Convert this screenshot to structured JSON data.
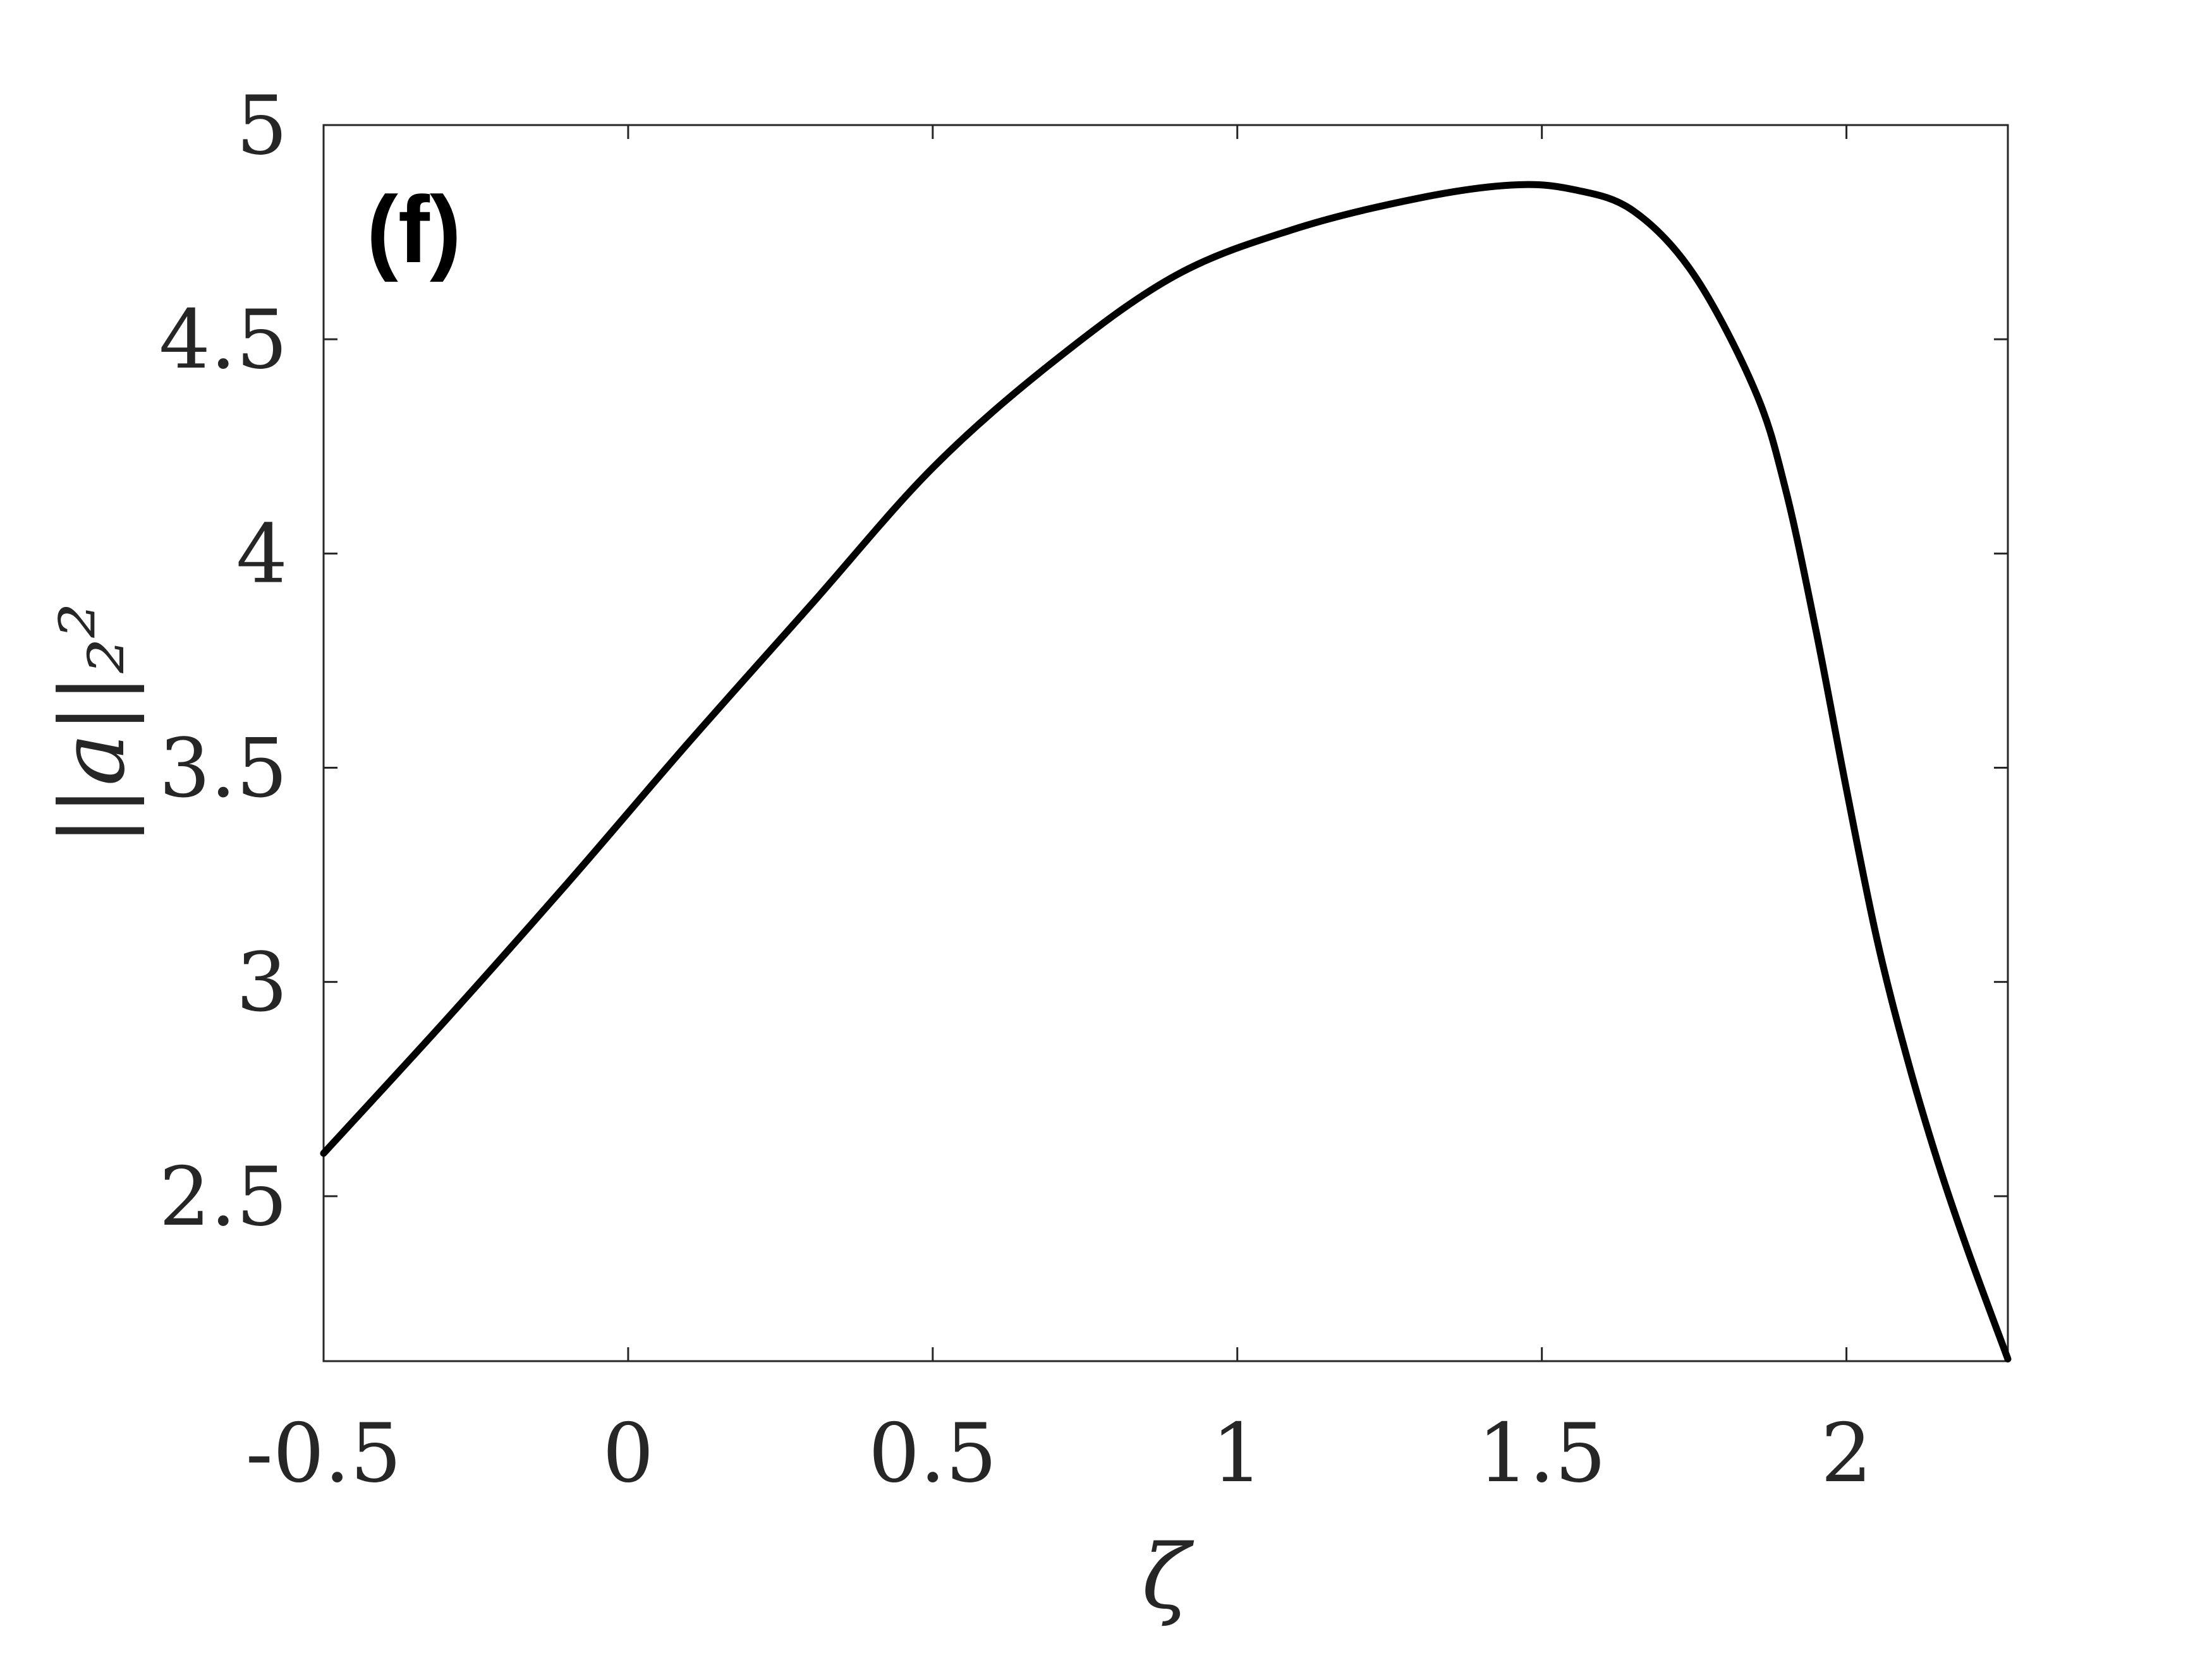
{
  "chart_data": {
    "type": "line",
    "panel_label": "(f)",
    "xlabel": "ζ",
    "ylabel": "||a||₂²",
    "xlim": [
      -0.5,
      2.265
    ],
    "ylim": [
      2.115,
      5.0
    ],
    "xticks": [
      -0.5,
      0,
      0.5,
      1,
      1.5,
      2
    ],
    "xtick_labels": [
      "-0.5",
      "0",
      "0.5",
      "1",
      "1.5",
      "2"
    ],
    "yticks": [
      2.5,
      3,
      3.5,
      4,
      4.5,
      5
    ],
    "ytick_labels": [
      "2.5",
      "3",
      "3.5",
      "4",
      "4.5",
      "5"
    ],
    "grid": false,
    "line_color": "#000000",
    "series": [
      {
        "x": [
          -0.5,
          -0.3,
          -0.1,
          0.1,
          0.3,
          0.5,
          0.7,
          0.9,
          1.1,
          1.3,
          1.45,
          1.55,
          1.65,
          1.75,
          1.85,
          1.9,
          1.95,
          2.0,
          2.05,
          2.1,
          2.15,
          2.2,
          2.265
        ],
        "y": [
          2.6,
          2.91,
          3.23,
          3.56,
          3.88,
          4.2,
          4.45,
          4.65,
          4.76,
          4.83,
          4.86,
          4.85,
          4.8,
          4.65,
          4.38,
          4.15,
          3.82,
          3.45,
          3.1,
          2.82,
          2.58,
          2.37,
          2.12
        ]
      }
    ]
  }
}
